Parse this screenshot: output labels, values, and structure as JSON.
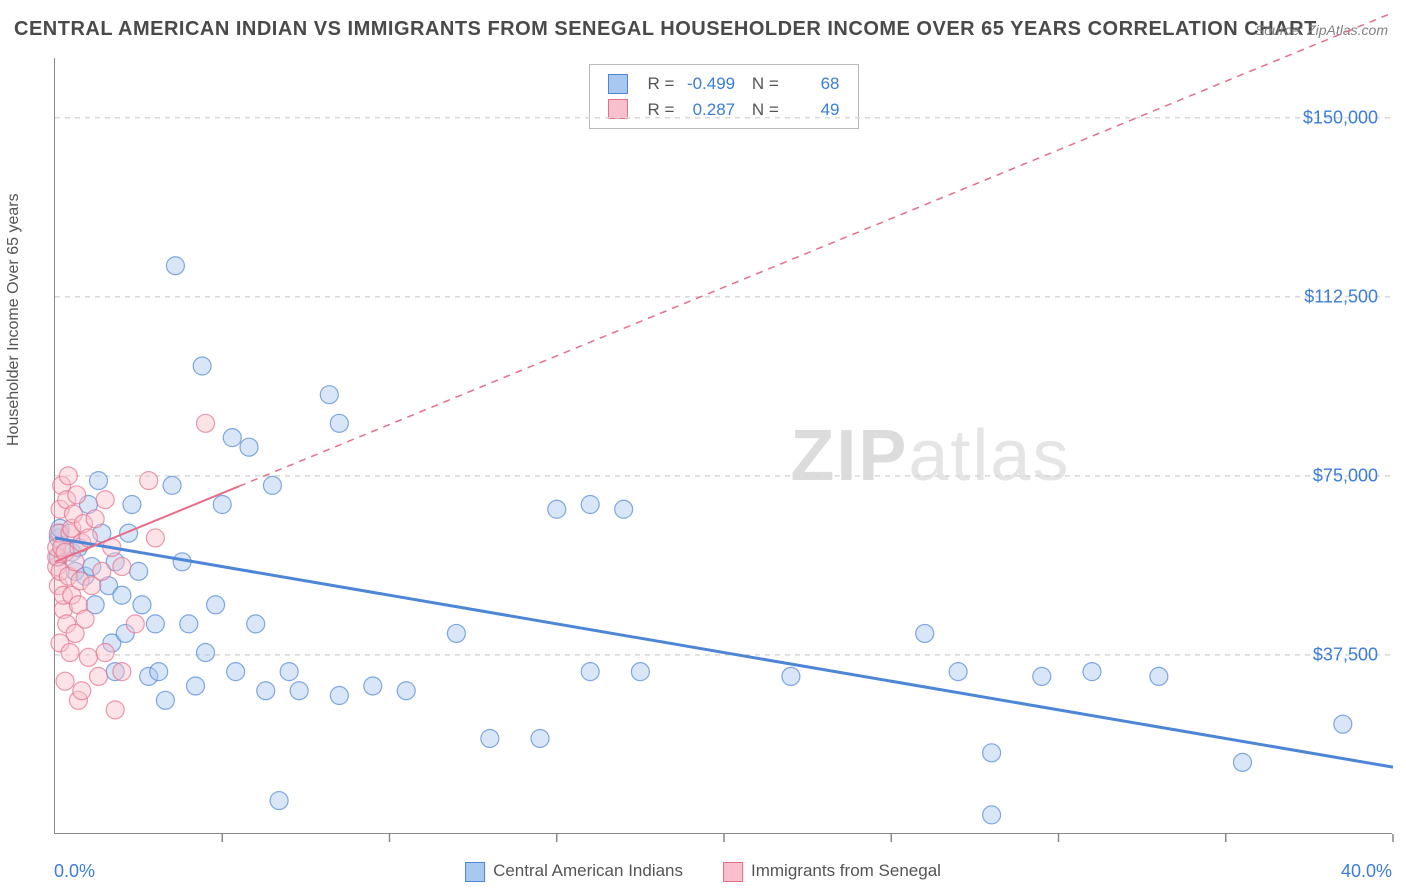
{
  "title": "CENTRAL AMERICAN INDIAN VS IMMIGRANTS FROM SENEGAL HOUSEHOLDER INCOME OVER 65 YEARS CORRELATION CHART",
  "source": "Source: ZipAtlas.com",
  "watermark_a": "ZIP",
  "watermark_b": "atlas",
  "ylabel": "Householder Income Over 65 years",
  "chart": {
    "type": "scatter",
    "xlim": [
      0,
      40
    ],
    "ylim": [
      0,
      162500
    ],
    "x_start_label": "0.0%",
    "x_end_label": "40.0%",
    "x_ticks": [
      0,
      5,
      10,
      15,
      20,
      25,
      30,
      35,
      40
    ],
    "y_ticks": [
      {
        "v": 37500,
        "label": "$37,500"
      },
      {
        "v": 75000,
        "label": "$75,000"
      },
      {
        "v": 112500,
        "label": "$112,500"
      },
      {
        "v": 150000,
        "label": "$150,000"
      }
    ],
    "grid_color": "#d8d8d8",
    "axis_color": "#888888",
    "background_color": "#ffffff",
    "label_fontsize": 16,
    "tick_fontsize": 18,
    "tick_label_color": "#3b7dd8",
    "marker_radius": 9,
    "marker_opacity": 0.45,
    "marker_stroke_width": 1.2
  },
  "series": [
    {
      "name": "Central American Indians",
      "R": "-0.499",
      "N": "68",
      "fill": "#a9c8f0",
      "stroke": "#4e86d6",
      "trend": {
        "x1": 0,
        "y1": 62000,
        "x2": 40,
        "y2": 14000,
        "solid_until_x": 40,
        "dash": false,
        "width": 3
      },
      "points": [
        [
          0.1,
          62000
        ],
        [
          0.1,
          58000
        ],
        [
          0.15,
          63000
        ],
        [
          0.15,
          64000
        ],
        [
          0.5,
          59000
        ],
        [
          0.6,
          55000
        ],
        [
          0.7,
          60000
        ],
        [
          0.9,
          54000
        ],
        [
          1.0,
          69000
        ],
        [
          1.1,
          56000
        ],
        [
          1.2,
          48000
        ],
        [
          1.3,
          74000
        ],
        [
          1.4,
          63000
        ],
        [
          1.6,
          52000
        ],
        [
          1.7,
          40000
        ],
        [
          1.8,
          34000
        ],
        [
          1.8,
          57000
        ],
        [
          2.0,
          50000
        ],
        [
          2.1,
          42000
        ],
        [
          2.2,
          63000
        ],
        [
          2.3,
          69000
        ],
        [
          2.5,
          55000
        ],
        [
          2.6,
          48000
        ],
        [
          2.8,
          33000
        ],
        [
          3.0,
          44000
        ],
        [
          3.1,
          34000
        ],
        [
          3.3,
          28000
        ],
        [
          3.5,
          73000
        ],
        [
          3.6,
          119000
        ],
        [
          3.8,
          57000
        ],
        [
          4.0,
          44000
        ],
        [
          4.2,
          31000
        ],
        [
          4.4,
          98000
        ],
        [
          4.5,
          38000
        ],
        [
          4.8,
          48000
        ],
        [
          5.0,
          69000
        ],
        [
          5.3,
          83000
        ],
        [
          5.4,
          34000
        ],
        [
          5.8,
          81000
        ],
        [
          6.0,
          44000
        ],
        [
          6.3,
          30000
        ],
        [
          6.5,
          73000
        ],
        [
          6.7,
          7000
        ],
        [
          7.0,
          34000
        ],
        [
          7.3,
          30000
        ],
        [
          8.2,
          92000
        ],
        [
          8.5,
          86000
        ],
        [
          8.5,
          29000
        ],
        [
          9.5,
          31000
        ],
        [
          10.5,
          30000
        ],
        [
          12.0,
          42000
        ],
        [
          13.0,
          20000
        ],
        [
          14.5,
          20000
        ],
        [
          15.0,
          68000
        ],
        [
          16.0,
          69000
        ],
        [
          16.0,
          34000
        ],
        [
          17.0,
          68000
        ],
        [
          17.5,
          34000
        ],
        [
          22.0,
          33000
        ],
        [
          26.0,
          42000
        ],
        [
          27.0,
          34000
        ],
        [
          28.0,
          17000
        ],
        [
          28.0,
          4000
        ],
        [
          29.5,
          33000
        ],
        [
          31.0,
          34000
        ],
        [
          33.0,
          33000
        ],
        [
          35.5,
          15000
        ],
        [
          38.5,
          23000
        ]
      ]
    },
    {
      "name": "Immigrants from Senegal",
      "R": "0.287",
      "N": "49",
      "fill": "#f7c0cc",
      "stroke": "#e56f8a",
      "trend": {
        "x1": 0,
        "y1": 57000,
        "x2": 40,
        "y2": 172000,
        "solid_until_x": 5.5,
        "dash": true,
        "width": 2
      },
      "points": [
        [
          0.05,
          56000
        ],
        [
          0.05,
          58000
        ],
        [
          0.05,
          60000
        ],
        [
          0.1,
          52000
        ],
        [
          0.1,
          63000
        ],
        [
          0.15,
          55000
        ],
        [
          0.15,
          68000
        ],
        [
          0.15,
          40000
        ],
        [
          0.2,
          60000
        ],
        [
          0.2,
          73000
        ],
        [
          0.25,
          47000
        ],
        [
          0.25,
          50000
        ],
        [
          0.3,
          32000
        ],
        [
          0.3,
          59000
        ],
        [
          0.35,
          70000
        ],
        [
          0.35,
          44000
        ],
        [
          0.4,
          54000
        ],
        [
          0.4,
          75000
        ],
        [
          0.45,
          38000
        ],
        [
          0.45,
          63000
        ],
        [
          0.5,
          50000
        ],
        [
          0.5,
          64000
        ],
        [
          0.55,
          67000
        ],
        [
          0.6,
          42000
        ],
        [
          0.6,
          57000
        ],
        [
          0.65,
          71000
        ],
        [
          0.7,
          48000
        ],
        [
          0.7,
          28000
        ],
        [
          0.75,
          53000
        ],
        [
          0.8,
          61000
        ],
        [
          0.8,
          30000
        ],
        [
          0.85,
          65000
        ],
        [
          0.9,
          45000
        ],
        [
          1.0,
          37000
        ],
        [
          1.0,
          62000
        ],
        [
          1.1,
          52000
        ],
        [
          1.2,
          66000
        ],
        [
          1.3,
          33000
        ],
        [
          1.4,
          55000
        ],
        [
          1.5,
          38000
        ],
        [
          1.5,
          70000
        ],
        [
          1.7,
          60000
        ],
        [
          1.8,
          26000
        ],
        [
          2.0,
          34000
        ],
        [
          2.0,
          56000
        ],
        [
          2.4,
          44000
        ],
        [
          2.8,
          74000
        ],
        [
          3.0,
          62000
        ],
        [
          4.5,
          86000
        ]
      ]
    }
  ],
  "bottom_legend": [
    {
      "label": "Central American Indians",
      "fill": "#a9c8f0",
      "stroke": "#4e86d6"
    },
    {
      "label": "Immigrants from Senegal",
      "fill": "#f7c0cc",
      "stroke": "#e56f8a"
    }
  ]
}
